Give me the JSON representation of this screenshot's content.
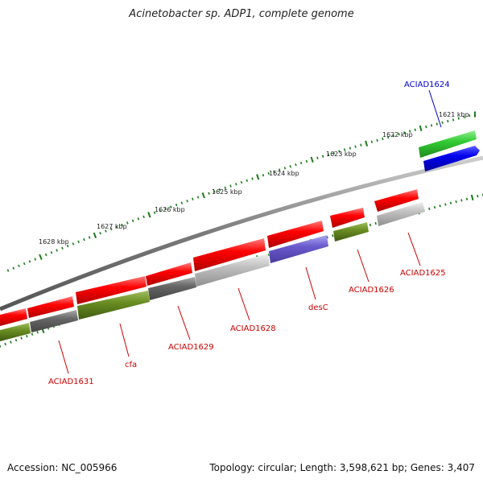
{
  "title": "Acinetobacter sp. ADP1, complete genome",
  "footer": {
    "accession": "Accession: NC_005966",
    "topology": "Topology: circular; Length: 3,598,621 bp; Genes: 3,407"
  },
  "scale_labels": [
    "1628 kbp",
    "1627 kbp",
    "1626 kbp",
    "1625 kbp",
    "1624 kbp",
    "1623 kbp",
    "1622 kbp",
    "1621 kbp"
  ],
  "gene_labels": [
    "ACIAD1624",
    "ACIAD1625",
    "ACIAD1626",
    "desC",
    "ACIAD1628",
    "ACIAD1629",
    "cfa",
    "ACIAD1631"
  ],
  "colors": {
    "red": "#ff0000",
    "blue": "#0000ee",
    "green": "#33cc33",
    "olive": "#5f8f1f",
    "grey": "#888888",
    "dark_grey": "#555555",
    "light_grey": "#bbbbbb",
    "purple": "#6a5acd",
    "tick_green": "#1a7a1a",
    "label_red": "#cc0000",
    "label_blue": "#0000cc"
  }
}
